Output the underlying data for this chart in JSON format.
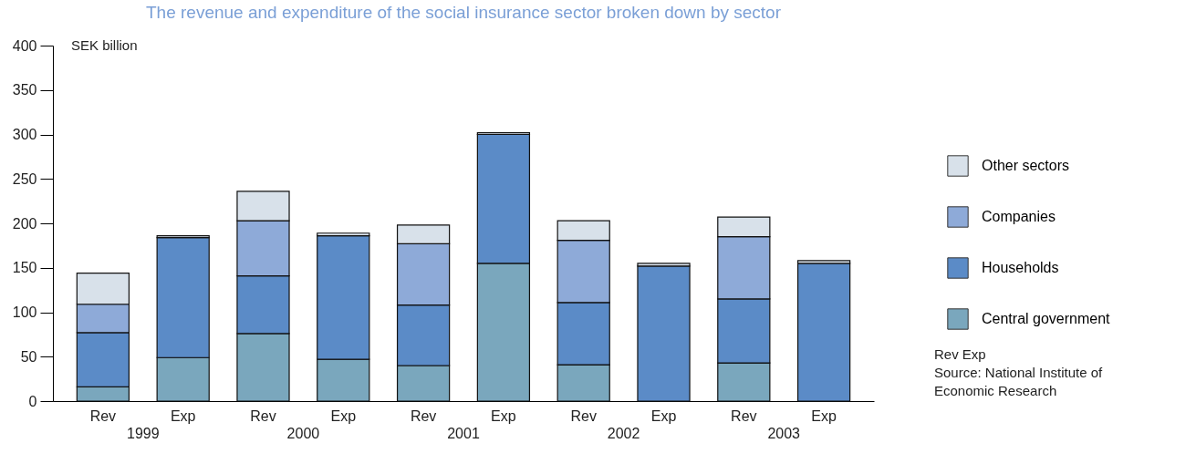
{
  "chart_data": {
    "type": "bar",
    "stacked": true,
    "title": "The revenue and expenditure of the social insurance sector broken down by sector",
    "ylabel": "SEK billion",
    "categories": [
      "Rev",
      "Exp",
      "Rev",
      "Exp",
      "Rev",
      "Exp",
      "Rev",
      "Exp",
      "Rev",
      "Exp"
    ],
    "series": [
      {
        "name": "Central government",
        "color": "#7aa7bd",
        "values": [
          16,
          49,
          76,
          47,
          40,
          155,
          41,
          0,
          43,
          0
        ]
      },
      {
        "name": "Households",
        "color": "#5b8bc7",
        "values": [
          61,
          135,
          65,
          139,
          68,
          145,
          70,
          152,
          72,
          155
        ]
      },
      {
        "name": "Companies",
        "color": "#8eaad8",
        "values": [
          32,
          null,
          62,
          null,
          69,
          null,
          70,
          null,
          70,
          null
        ]
      },
      {
        "name": "Other sectors",
        "color": "#d8e1ea",
        "values": [
          35,
          2,
          33,
          3,
          21,
          2,
          22,
          3,
          22,
          3
        ]
      }
    ],
    "ylim": [
      0,
      400
    ],
    "yticks": [
      0,
      50,
      100,
      150,
      200,
      250,
      300,
      350,
      400
    ],
    "legend": "right",
    "grid": false,
    "annotations": [
      "1999",
      "2000",
      "2001",
      "2002",
      "2003",
      "Rev Exp",
      "Source: National Institute of Economic Research"
    ]
  }
}
